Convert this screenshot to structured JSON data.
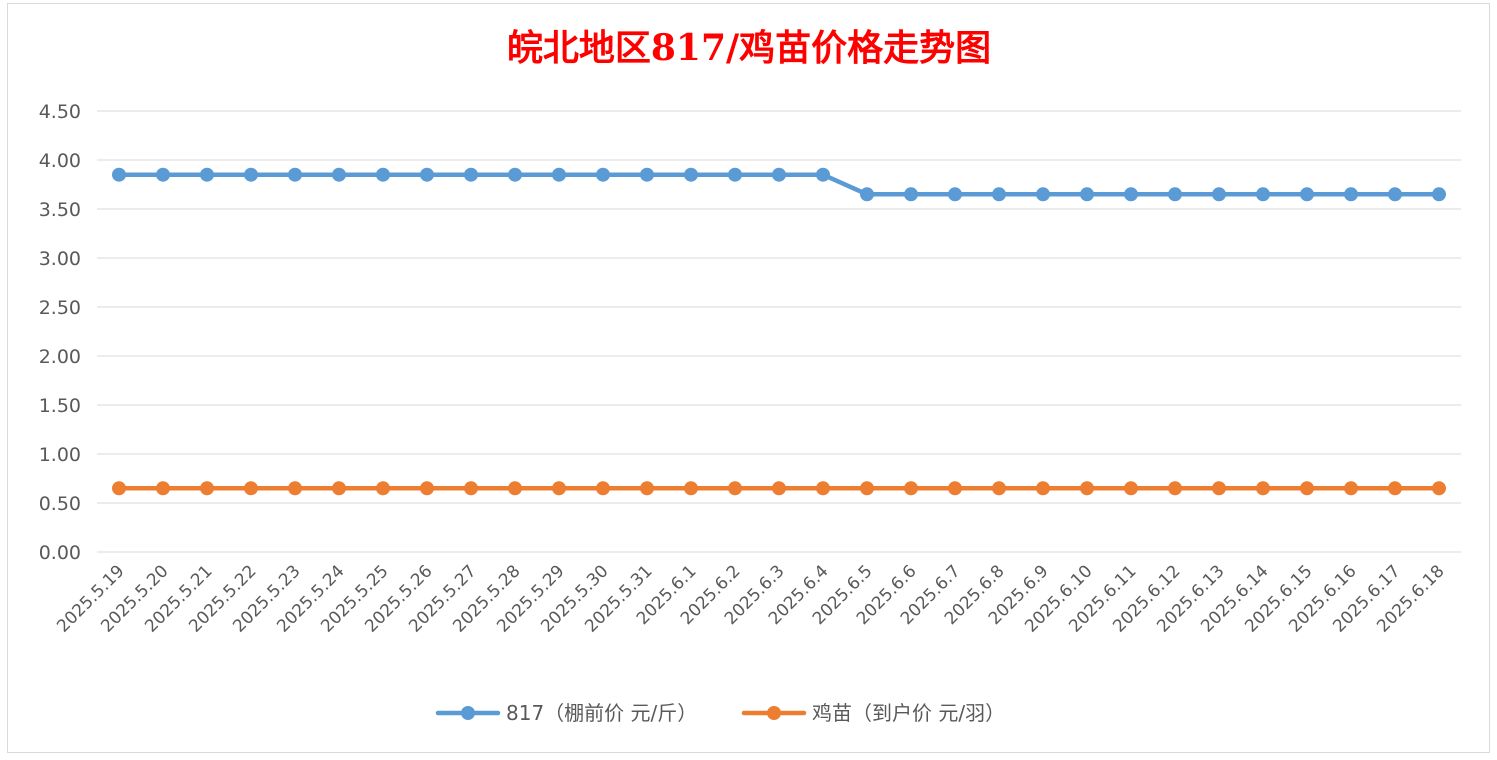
{
  "chart_data": {
    "type": "line",
    "title": "皖北地区817/鸡苗价格走势图",
    "xlabel": "",
    "ylabel": "",
    "ylim": [
      0,
      4.5
    ],
    "y_ticks": [
      "0.00",
      "0.50",
      "1.00",
      "1.50",
      "2.00",
      "2.50",
      "3.00",
      "3.50",
      "4.00",
      "4.50"
    ],
    "y_tick_values": [
      0,
      0.5,
      1,
      1.5,
      2,
      2.5,
      3,
      3.5,
      4,
      4.5
    ],
    "grid": true,
    "legend_position": "bottom",
    "categories": [
      "2025.5.19",
      "2025.5.20",
      "2025.5.21",
      "2025.5.22",
      "2025.5.23",
      "2025.5.24",
      "2025.5.25",
      "2025.5.26",
      "2025.5.27",
      "2025.5.28",
      "2025.5.29",
      "2025.5.30",
      "2025.5.31",
      "2025.6.1",
      "2025.6.2",
      "2025.6.3",
      "2025.6.4",
      "2025.6.5",
      "2025.6.6",
      "2025.6.7",
      "2025.6.8",
      "2025.6.9",
      "2025.6.10",
      "2025.6.11",
      "2025.6.12",
      "2025.6.13",
      "2025.6.14",
      "2025.6.15",
      "2025.6.16",
      "2025.6.17",
      "2025.6.18"
    ],
    "series": [
      {
        "name": "817（棚前价 元/斤）",
        "color": "#5b9bd5",
        "values": [
          3.85,
          3.85,
          3.85,
          3.85,
          3.85,
          3.85,
          3.85,
          3.85,
          3.85,
          3.85,
          3.85,
          3.85,
          3.85,
          3.85,
          3.85,
          3.85,
          3.85,
          3.65,
          3.65,
          3.65,
          3.65,
          3.65,
          3.65,
          3.65,
          3.65,
          3.65,
          3.65,
          3.65,
          3.65,
          3.65,
          3.65
        ]
      },
      {
        "name": "鸡苗（到户价 元/羽）",
        "color": "#ed7d31",
        "values": [
          0.65,
          0.65,
          0.65,
          0.65,
          0.65,
          0.65,
          0.65,
          0.65,
          0.65,
          0.65,
          0.65,
          0.65,
          0.65,
          0.65,
          0.65,
          0.65,
          0.65,
          0.65,
          0.65,
          0.65,
          0.65,
          0.65,
          0.65,
          0.65,
          0.65,
          0.65,
          0.65,
          0.65,
          0.65,
          0.65,
          0.65
        ]
      }
    ]
  }
}
